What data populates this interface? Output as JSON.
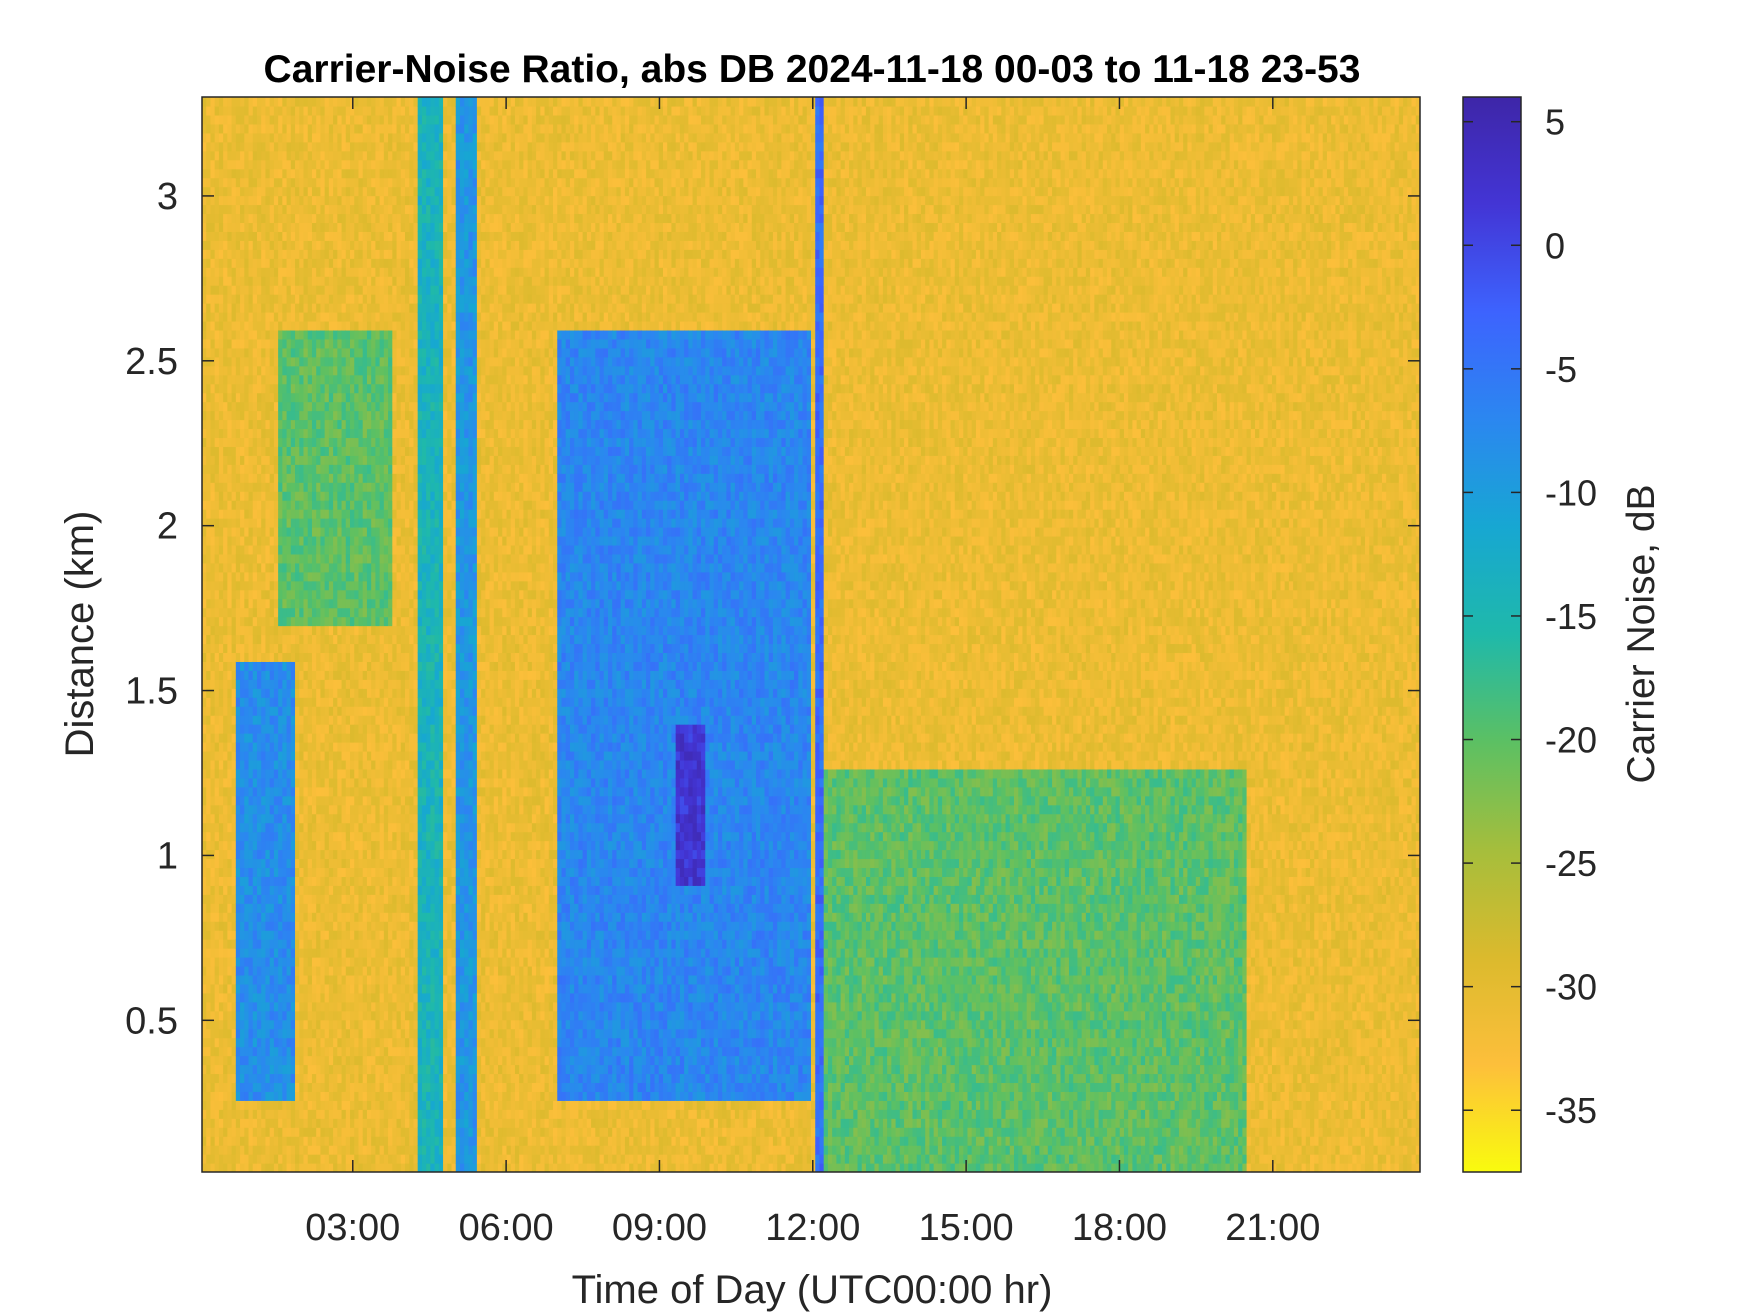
{
  "chart_data": {
    "type": "heatmap",
    "title": "Carrier-Noise Ratio, abs DB 2024-11-18 00-03 to 11-18 23-53",
    "xlabel": "Time of Day (UTC00:00 hr)",
    "ylabel": "Distance (km)",
    "colorbar_label": "Carrier Noise, dB",
    "x_unit": "hours",
    "xlim": [
      0.05,
      23.88
    ],
    "ylim": [
      0.04,
      3.3
    ],
    "clim": [
      -37.5,
      6
    ],
    "x_ticks": [
      {
        "value": 3,
        "label": "03:00"
      },
      {
        "value": 6,
        "label": "06:00"
      },
      {
        "value": 9,
        "label": "09:00"
      },
      {
        "value": 12,
        "label": "12:00"
      },
      {
        "value": 15,
        "label": "15:00"
      },
      {
        "value": 18,
        "label": "18:00"
      },
      {
        "value": 21,
        "label": "21:00"
      }
    ],
    "y_ticks": [
      {
        "value": 0.5,
        "label": "0.5"
      },
      {
        "value": 1,
        "label": "1"
      },
      {
        "value": 1.5,
        "label": "1.5"
      },
      {
        "value": 2,
        "label": "2"
      },
      {
        "value": 2.5,
        "label": "2.5"
      },
      {
        "value": 3,
        "label": "3"
      }
    ],
    "colorbar_ticks": [
      {
        "value": 5,
        "label": "5"
      },
      {
        "value": 0,
        "label": "0"
      },
      {
        "value": -5,
        "label": "-5"
      },
      {
        "value": -10,
        "label": "-10"
      },
      {
        "value": -15,
        "label": "-15"
      },
      {
        "value": -20,
        "label": "-20"
      },
      {
        "value": -25,
        "label": "-25"
      },
      {
        "value": -30,
        "label": "-30"
      },
      {
        "value": -35,
        "label": "-35"
      }
    ],
    "colormap": [
      "#f9fb0e",
      "#fdbf3b",
      "#dbba2d",
      "#a5be3c",
      "#5cc063",
      "#1fb9aa",
      "#17a7d2",
      "#2b87f0",
      "#3d63fe",
      "#4335d5",
      "#3e26a8"
    ],
    "background_level_db": -31,
    "features": [
      {
        "name": "early low-altitude plume",
        "t_start": 0.7,
        "t_end": 1.9,
        "d_bottom": 0.25,
        "d_top": 1.6,
        "level_db": -8
      },
      {
        "name": "upper green layer",
        "t_start": 1.5,
        "t_end": 3.8,
        "d_bottom": 1.7,
        "d_top": 2.6,
        "level_db": -20
      },
      {
        "name": "vertical streak 04:30",
        "t_start": 4.3,
        "t_end": 4.8,
        "d_bottom": 0.05,
        "d_top": 3.3,
        "level_db": -14
      },
      {
        "name": "vertical streak 05:15",
        "t_start": 5.0,
        "t_end": 5.4,
        "d_bottom": 0.05,
        "d_top": 3.3,
        "level_db": -9
      },
      {
        "name": "descending layer 07:00-12:00",
        "t_start": 7.0,
        "t_end": 12.0,
        "d_bottom": 0.25,
        "d_top": 2.6,
        "level_db": -7
      },
      {
        "name": "cloud core 09:30",
        "t_start": 9.3,
        "t_end": 9.9,
        "d_bottom": 0.9,
        "d_top": 1.4,
        "level_db": 2
      },
      {
        "name": "vertical streak 12:10",
        "t_start": 12.05,
        "t_end": 12.25,
        "d_bottom": 0.05,
        "d_top": 3.3,
        "level_db": -4
      },
      {
        "name": "afternoon boundary layer",
        "t_start": 12.2,
        "t_end": 20.5,
        "d_bottom": 0.05,
        "d_top": 1.25,
        "level_db": -20
      }
    ]
  }
}
